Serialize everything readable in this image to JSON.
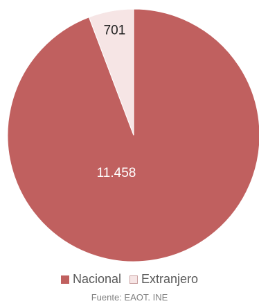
{
  "chart_data": {
    "type": "pie",
    "categories": [
      "Nacional",
      "Extranjero"
    ],
    "values": [
      11458,
      701
    ],
    "data_labels": [
      "11.458",
      "701"
    ],
    "colors": [
      "#C0605F",
      "#F6E5E5"
    ],
    "outline_colors": [
      "#C0605F",
      "#C9A0A0"
    ],
    "start_angle_deg": 0,
    "direction": "clockwise",
    "legend_position": "bottom",
    "label_color": "#FFFFFF",
    "label_color_light": "#222222"
  },
  "legend": {
    "items": [
      {
        "label": "Nacional",
        "color": "#C0605F"
      },
      {
        "label": "Extranjero",
        "color": "#F6E5E5"
      }
    ]
  },
  "footer": {
    "source": "Fuente: EAOT. INE"
  }
}
